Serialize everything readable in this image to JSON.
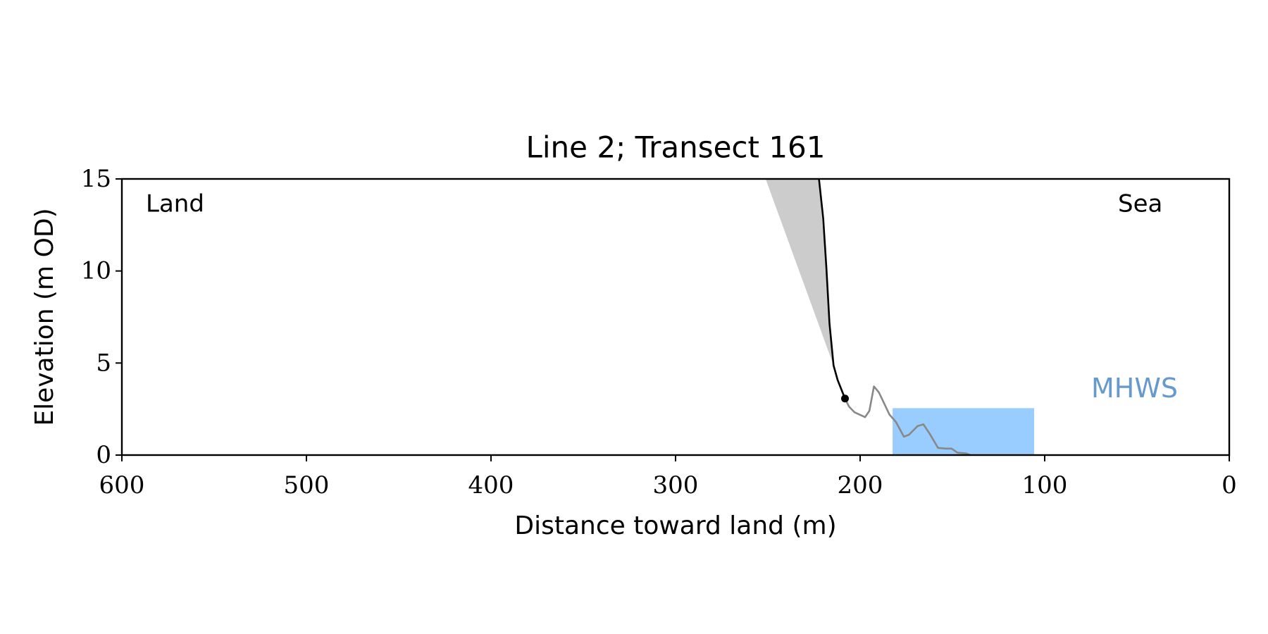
{
  "chart_data": {
    "type": "line",
    "title": "Line 2; Transect 161",
    "x_label": "Distance toward land (m)",
    "y_label": "Elevation (m OD)",
    "annotations": {
      "land": "Land",
      "sea": "Sea",
      "mhws": "MHWS"
    },
    "mhws_color": "#6699cc",
    "xlim": [
      600,
      0
    ],
    "ylim": [
      0,
      15
    ],
    "xticks": [
      600,
      500,
      400,
      300,
      200,
      100,
      0
    ],
    "yticks": [
      0,
      5,
      10,
      15
    ],
    "fills": [
      {
        "color": "#cccccc",
        "x": [
          251.2,
          222.3,
          214.4
        ],
        "values": [
          15,
          15,
          4.87
        ]
      },
      {
        "color": "#99ccff",
        "x": [
          182.4,
          105.7,
          105.7,
          182.4
        ],
        "values": [
          2.55,
          2.55,
          0,
          0
        ]
      }
    ],
    "series": [
      {
        "color": "#000000",
        "style": "line",
        "x": [
          222.3,
          220.0,
          218.3,
          216.6,
          214.4,
          212.2,
          208.2
        ],
        "values": [
          15,
          12.85,
          10.2,
          7.15,
          4.87,
          4.08,
          3.07
        ]
      },
      {
        "color": "#888888",
        "style": "line",
        "x": [
          208.2,
          206.0,
          203.0,
          197.3,
          195.0,
          192.5,
          189.8,
          184.1,
          180.6,
          176.3,
          173.6,
          168.8,
          165.7,
          162.2,
          157.8,
          153.5,
          150.4,
          147.3,
          142.5,
          140.3
        ],
        "values": [
          3.07,
          2.63,
          2.32,
          2.06,
          2.4,
          3.73,
          3.4,
          2.2,
          1.8,
          1.0,
          1.1,
          1.58,
          1.67,
          1.14,
          0.39,
          0.35,
          0.35,
          0.13,
          0.09,
          0
        ]
      },
      {
        "color": "#000000",
        "style": "marker",
        "x": [
          208.2
        ],
        "values": [
          3.07
        ]
      }
    ]
  }
}
